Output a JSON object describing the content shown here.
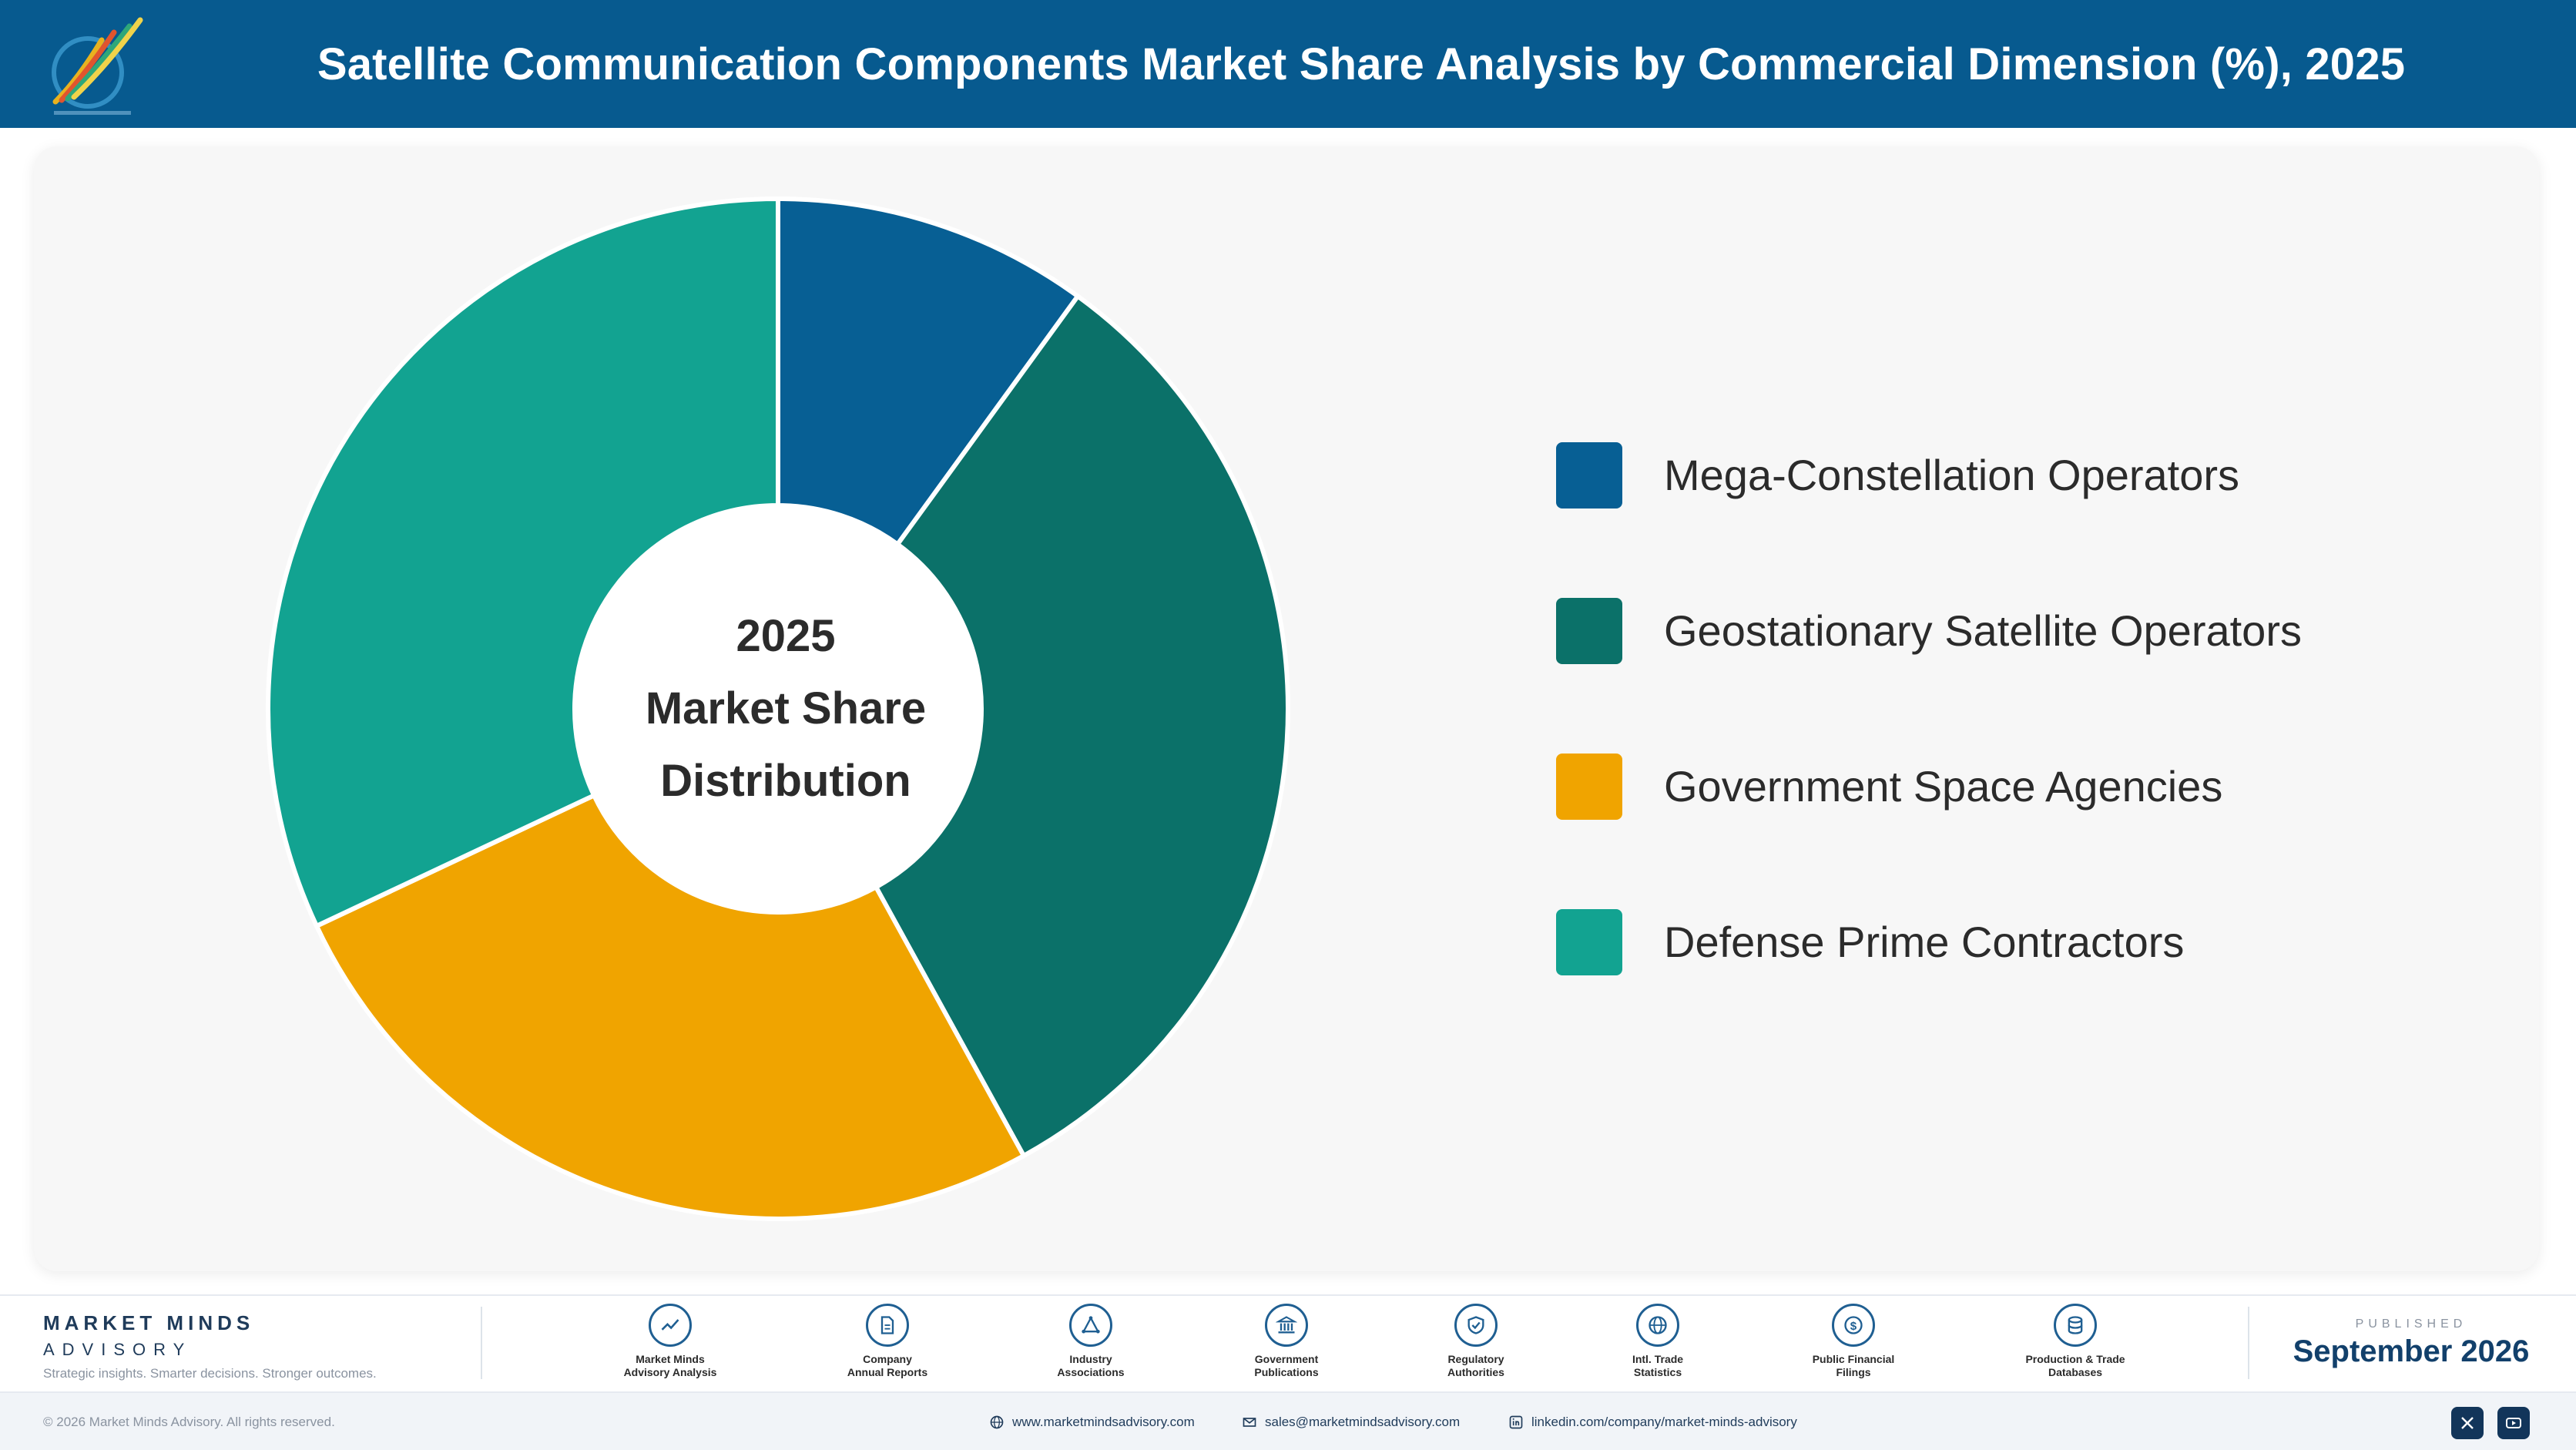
{
  "header": {
    "title": "Satellite Communication Components Market Share Analysis by Commercial Dimension (%), 2025",
    "logo_icon": "market-minds-logo-icon"
  },
  "chart_data": {
    "type": "pie",
    "variant": "donut",
    "center_label": [
      "2025",
      "Market Share",
      "Distribution"
    ],
    "legend_position": "right",
    "categories": [
      "Mega-Constellation Operators",
      "Geostationary Satellite Operators",
      "Government Space Agencies",
      "Defense Prime Contractors"
    ],
    "values": [
      10,
      32,
      26,
      32
    ],
    "colors": [
      "#075f94",
      "#0b7169",
      "#f0a400",
      "#12a391"
    ]
  },
  "footer": {
    "brand": {
      "name": "MARKET MINDS",
      "sub": "ADVISORY",
      "tagline": "Strategic insights. Smarter decisions. Stronger outcomes."
    },
    "sources": [
      {
        "label1": "Market Minds",
        "label2": "Advisory Analysis",
        "icon": "trend-chart-icon"
      },
      {
        "label1": "Company",
        "label2": "Annual Reports",
        "icon": "document-icon"
      },
      {
        "label1": "Industry",
        "label2": "Associations",
        "icon": "network-icon"
      },
      {
        "label1": "Government",
        "label2": "Publications",
        "icon": "government-building-icon"
      },
      {
        "label1": "Regulatory",
        "label2": "Authorities",
        "icon": "shield-check-icon"
      },
      {
        "label1": "Intl. Trade",
        "label2": "Statistics",
        "icon": "globe-icon"
      },
      {
        "label1": "Public Financial",
        "label2": "Filings",
        "icon": "dollar-coin-icon"
      },
      {
        "label1": "Production & Trade",
        "label2": "Databases",
        "icon": "database-icon"
      }
    ],
    "published": {
      "label": "PUBLISHED",
      "date": "September 2026"
    },
    "copyright": "© 2026 Market Minds Advisory. All rights reserved.",
    "contacts": {
      "website": "www.marketmindsadvisory.com",
      "email": "sales@marketmindsadvisory.com",
      "linkedin": "linkedin.com/company/market-minds-advisory"
    },
    "social": [
      "x-icon",
      "youtube-icon"
    ]
  }
}
